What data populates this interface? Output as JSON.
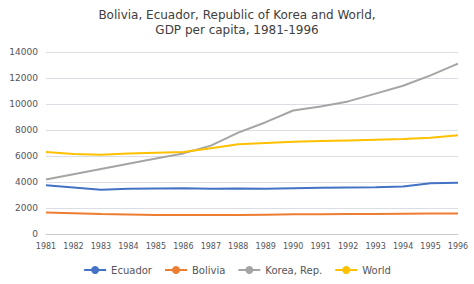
{
  "chart_data": {
    "type": "line",
    "title": "Bolivia, Ecuador, Republic of Korea and World,",
    "subtitle": "GDP per capita, 1981-1996",
    "x": [
      1981,
      1982,
      1983,
      1984,
      1985,
      1986,
      1987,
      1988,
      1989,
      1990,
      1991,
      1992,
      1993,
      1994,
      1995,
      1996
    ],
    "xlim": [
      1981,
      1996
    ],
    "xticks": [
      1981,
      1982,
      1983,
      1984,
      1985,
      1986,
      1987,
      1988,
      1989,
      1990,
      1991,
      1992,
      1993,
      1994,
      1995,
      1996
    ],
    "series": [
      {
        "name": "Ecuador",
        "color": "#4472C4",
        "values": [
          3750,
          3580,
          3400,
          3480,
          3500,
          3520,
          3480,
          3500,
          3480,
          3520,
          3550,
          3580,
          3600,
          3650,
          3900,
          3950
        ]
      },
      {
        "name": "Bolivia",
        "color": "#ED7D31",
        "values": [
          1650,
          1600,
          1530,
          1500,
          1470,
          1460,
          1460,
          1470,
          1490,
          1510,
          1520,
          1530,
          1540,
          1560,
          1580,
          1570
        ]
      },
      {
        "name": "Korea, Rep.",
        "color": "#A5A5A5",
        "values": [
          4200,
          4600,
          5000,
          5400,
          5800,
          6200,
          6800,
          7800,
          8600,
          9500,
          9800,
          10200,
          10800,
          11400,
          12200,
          13100
        ]
      },
      {
        "name": "World",
        "color": "#FFC000",
        "values": [
          6300,
          6150,
          6100,
          6200,
          6250,
          6300,
          6600,
          6900,
          7000,
          7100,
          7150,
          7200,
          7250,
          7300,
          7400,
          7600
        ]
      }
    ],
    "ylim": [
      0,
      14000
    ],
    "yticks": [
      0,
      2000,
      4000,
      6000,
      8000,
      10000,
      12000,
      14000
    ],
    "grid": true,
    "legend": "bottom"
  }
}
